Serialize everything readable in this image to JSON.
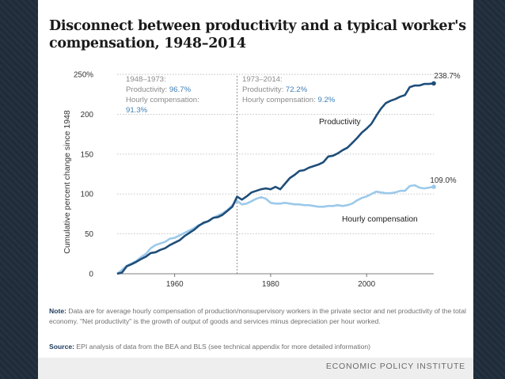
{
  "header": {
    "title": "Disconnect between productivity and a typical worker's compensation, 1948–2014"
  },
  "annotations": {
    "period1": {
      "heading": "1948–1973:",
      "productivity_label": "Productivity: ",
      "productivity_value": "96.7%",
      "compensation_label": "Hourly compensation:",
      "compensation_value": "91.3%"
    },
    "period2": {
      "heading": "1973–2014:",
      "productivity_label": "Productivity: ",
      "productivity_value": "72.2%",
      "compensation_label": "Hourly compensation: ",
      "compensation_value": "9.2%"
    },
    "productivity_end": "238.7%",
    "compensation_end": "109.0%",
    "productivity_series_label": "Productivity",
    "compensation_series_label": "Hourly compensation"
  },
  "footer": {
    "note_label": "Note:",
    "note_text": "Data are for average hourly compensation of production/nonsupervisory workers in the private sector and net productivity of the total economy. \"Net productivity\" is the growth of output of goods and services minus depreciation per hour worked.",
    "source_label": "Source:",
    "source_text": "EPI analysis of data from the BEA and BLS (see technical appendix for more detailed information)",
    "org": "ECONOMIC POLICY INSTITUTE"
  },
  "colors": {
    "productivity": "#1f4e79",
    "compensation": "#9cc9ea",
    "grid": "#bdbdbd",
    "divider": "#777777",
    "text": "#333333",
    "highlight": "#3e7fb5"
  },
  "chart_data": {
    "type": "line",
    "title": "Disconnect between productivity and a typical worker's compensation, 1948–2014",
    "xlabel": "",
    "ylabel": "Cumulative percent change since 1948",
    "xlim": [
      1948,
      2014
    ],
    "ylim": [
      0,
      250
    ],
    "xticks": [
      "1960",
      "1980",
      "2000"
    ],
    "yticks": [
      "0",
      "50",
      "100",
      "150",
      "200",
      "250%"
    ],
    "grid": "horizontal dotted",
    "divider_year": 1973,
    "series": [
      {
        "name": "Productivity",
        "x": [
          1948,
          1949,
          1950,
          1951,
          1952,
          1953,
          1954,
          1955,
          1956,
          1957,
          1958,
          1959,
          1960,
          1961,
          1962,
          1963,
          1964,
          1965,
          1966,
          1967,
          1968,
          1969,
          1970,
          1971,
          1972,
          1973,
          1974,
          1975,
          1976,
          1977,
          1978,
          1979,
          1980,
          1981,
          1982,
          1983,
          1984,
          1985,
          1986,
          1987,
          1988,
          1989,
          1990,
          1991,
          1992,
          1993,
          1994,
          1995,
          1996,
          1997,
          1998,
          1999,
          2000,
          2001,
          2002,
          2003,
          2004,
          2005,
          2006,
          2007,
          2008,
          2009,
          2010,
          2011,
          2012,
          2013,
          2014
        ],
        "values": [
          0,
          1.5,
          9.3,
          12,
          15,
          18.5,
          21.5,
          26,
          27,
          30,
          32,
          36,
          39,
          42,
          47,
          51,
          55,
          60,
          64,
          66,
          70,
          71,
          74,
          79,
          84,
          96.7,
          93,
          97,
          102,
          104,
          106,
          107,
          106,
          109,
          106,
          113,
          120,
          124,
          129,
          130,
          133,
          135,
          137,
          140,
          147,
          148,
          151,
          155,
          158,
          164,
          170,
          177,
          182,
          188,
          198,
          207,
          214,
          217,
          219,
          222,
          224,
          234,
          236,
          236,
          238,
          238,
          238.7
        ]
      },
      {
        "name": "Hourly compensation",
        "x": [
          1948,
          1949,
          1950,
          1951,
          1952,
          1953,
          1954,
          1955,
          1956,
          1957,
          1958,
          1959,
          1960,
          1961,
          1962,
          1963,
          1964,
          1965,
          1966,
          1967,
          1968,
          1969,
          1970,
          1971,
          1972,
          1973,
          1974,
          1975,
          1976,
          1977,
          1978,
          1979,
          1980,
          1981,
          1982,
          1983,
          1984,
          1985,
          1986,
          1987,
          1988,
          1989,
          1990,
          1991,
          1992,
          1993,
          1994,
          1995,
          1996,
          1997,
          1998,
          1999,
          2000,
          2001,
          2002,
          2003,
          2004,
          2005,
          2006,
          2007,
          2008,
          2009,
          2010,
          2011,
          2012,
          2013,
          2014
        ],
        "values": [
          0,
          5,
          10,
          13,
          16,
          21,
          25,
          32,
          36,
          38,
          40,
          44,
          45,
          48,
          51,
          54,
          57,
          61,
          63,
          66,
          70,
          73,
          76,
          80,
          86,
          91.3,
          87,
          88,
          91,
          94,
          96,
          94,
          89,
          88,
          88,
          89,
          88,
          87,
          87,
          86,
          86,
          85,
          84,
          84,
          85,
          85,
          86,
          85,
          86,
          88,
          92,
          95,
          97,
          100,
          103,
          102,
          101,
          101,
          102,
          104,
          104,
          110,
          111,
          108,
          107,
          108,
          109.0
        ]
      }
    ]
  }
}
